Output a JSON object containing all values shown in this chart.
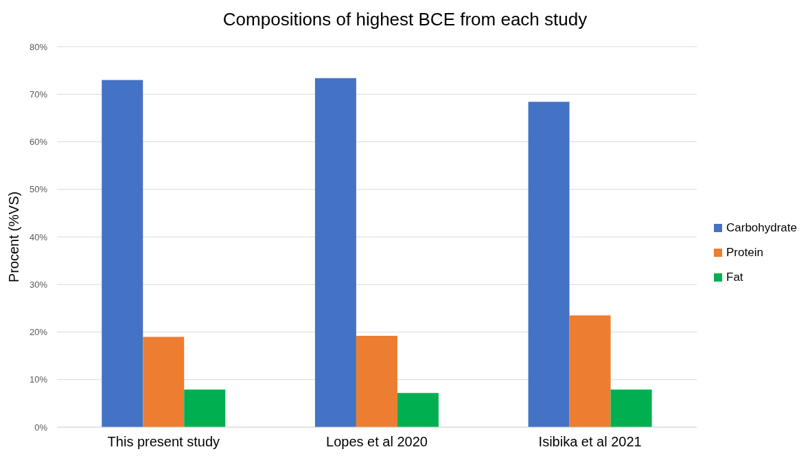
{
  "chart_data": {
    "type": "bar",
    "title": "Compositions of highest BCE from each study",
    "ylabel": "Procent (%VS)",
    "categories": [
      "This present study",
      "Lopes et al 2020",
      "Isibika et al 2021"
    ],
    "series": [
      {
        "name": "Carbohydrate",
        "color": "#4472c4",
        "values": [
          73,
          73.4,
          68.4
        ]
      },
      {
        "name": "Protein",
        "color": "#ed7d31",
        "values": [
          19,
          19.2,
          23.5
        ]
      },
      {
        "name": "Fat",
        "color": "#00b050",
        "values": [
          7.9,
          7.2,
          7.9
        ]
      }
    ],
    "ylim": [
      0,
      80
    ],
    "yticks": [
      {
        "value": 0,
        "label": "0%"
      },
      {
        "value": 10,
        "label": "10%"
      },
      {
        "value": 20,
        "label": "20%"
      },
      {
        "value": 30,
        "label": "30%"
      },
      {
        "value": 40,
        "label": "40%"
      },
      {
        "value": 50,
        "label": "50%"
      },
      {
        "value": 60,
        "label": "60%"
      },
      {
        "value": 70,
        "label": "70%"
      },
      {
        "value": 80,
        "label": "80%"
      }
    ],
    "grid": "y",
    "legend": "right"
  }
}
